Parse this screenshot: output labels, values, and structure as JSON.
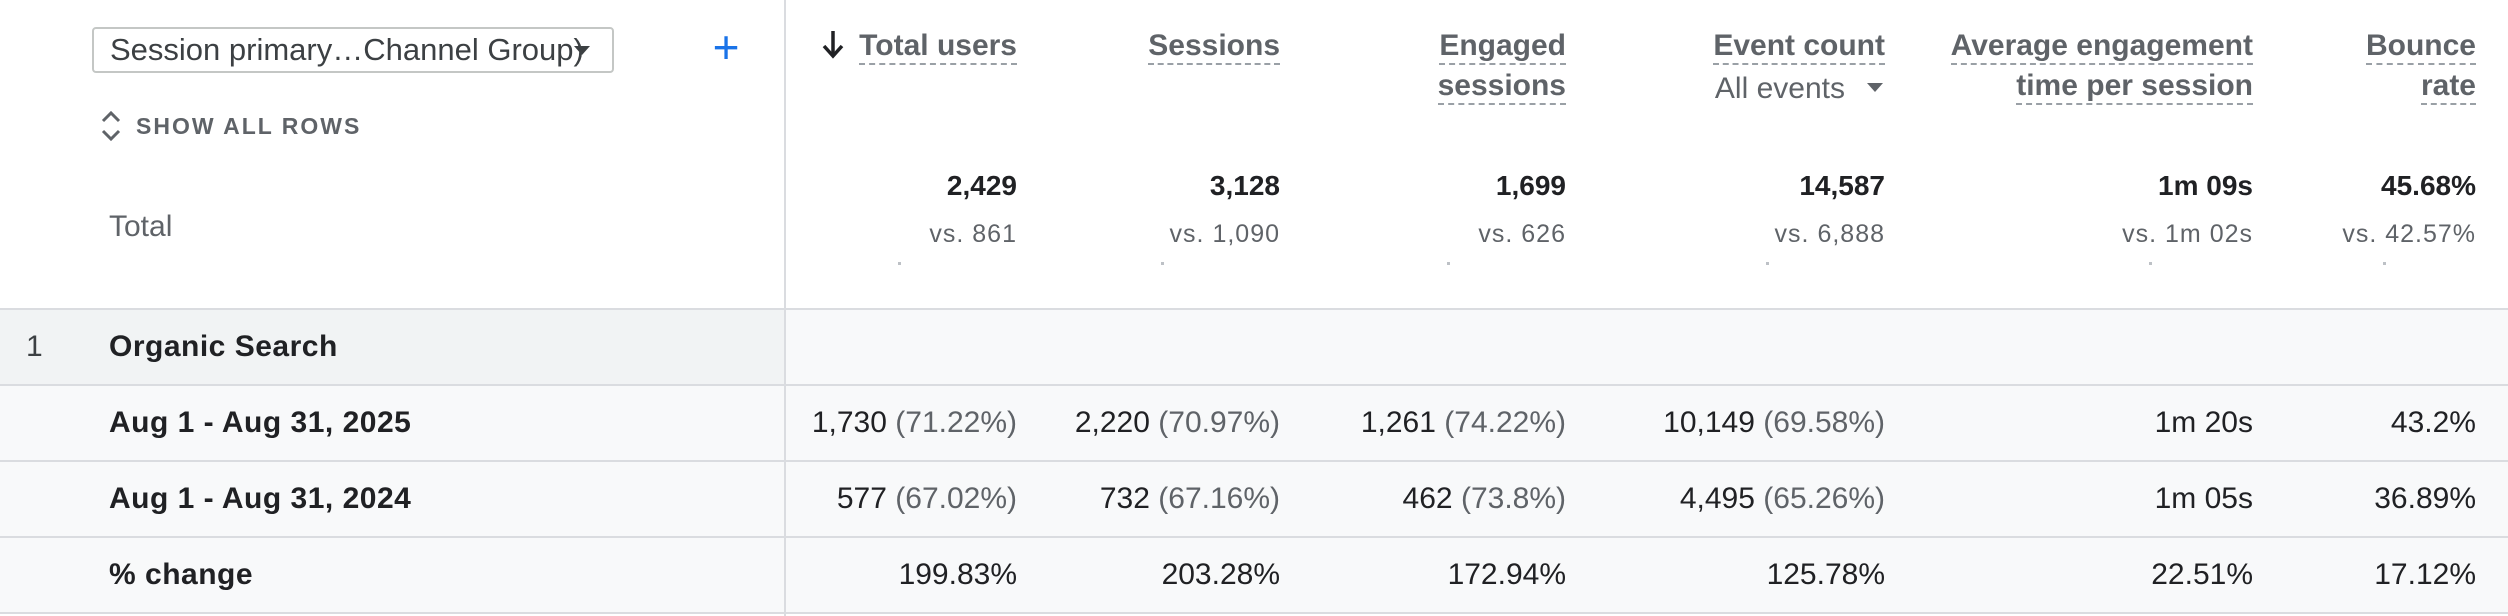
{
  "dimension_selector": {
    "label": "Session primary…Channel Group)"
  },
  "add_dimension": {
    "label": "+"
  },
  "show_all_rows": {
    "label": "SHOW ALL ROWS"
  },
  "total": {
    "label": "Total",
    "values": [
      "2,429",
      "3,128",
      "1,699",
      "14,587",
      "1m 09s",
      "45.68%"
    ],
    "comparisons": [
      "vs. 861",
      "vs. 1,090",
      "vs. 626",
      "vs. 6,888",
      "vs. 1m 02s",
      "vs. 42.57%"
    ]
  },
  "columns": {
    "total_users": "Total users",
    "sessions": "Sessions",
    "engaged_1": "Engaged",
    "engaged_2": "sessions",
    "event_count": "Event count",
    "events_filter": "All events",
    "avg_eng_1": "Average engagement",
    "avg_eng_2": "time per session",
    "bounce_1": "Bounce",
    "bounce_2": "rate"
  },
  "group": {
    "number": "1",
    "label": "Organic Search"
  },
  "rows": [
    {
      "label": "Aug 1 - Aug 31, 2025",
      "cells": [
        {
          "v": "1,730",
          "p": "(71.22%)"
        },
        {
          "v": "2,220",
          "p": "(70.97%)"
        },
        {
          "v": "1,261",
          "p": "(74.22%)"
        },
        {
          "v": "10,149",
          "p": "(69.58%)"
        },
        {
          "v": "1m 20s",
          "p": ""
        },
        {
          "v": "43.2%",
          "p": ""
        }
      ]
    },
    {
      "label": "Aug 1 - Aug 31, 2024",
      "cells": [
        {
          "v": "577",
          "p": "(67.02%)"
        },
        {
          "v": "732",
          "p": "(67.16%)"
        },
        {
          "v": "462",
          "p": "(73.8%)"
        },
        {
          "v": "4,495",
          "p": "(65.26%)"
        },
        {
          "v": "1m 05s",
          "p": ""
        },
        {
          "v": "36.89%",
          "p": ""
        }
      ]
    },
    {
      "label": "% change",
      "cells": [
        {
          "v": "199.83%",
          "p": ""
        },
        {
          "v": "203.28%",
          "p": ""
        },
        {
          "v": "172.94%",
          "p": ""
        },
        {
          "v": "125.78%",
          "p": ""
        },
        {
          "v": "22.51%",
          "p": ""
        },
        {
          "v": "17.12%",
          "p": ""
        }
      ]
    }
  ]
}
